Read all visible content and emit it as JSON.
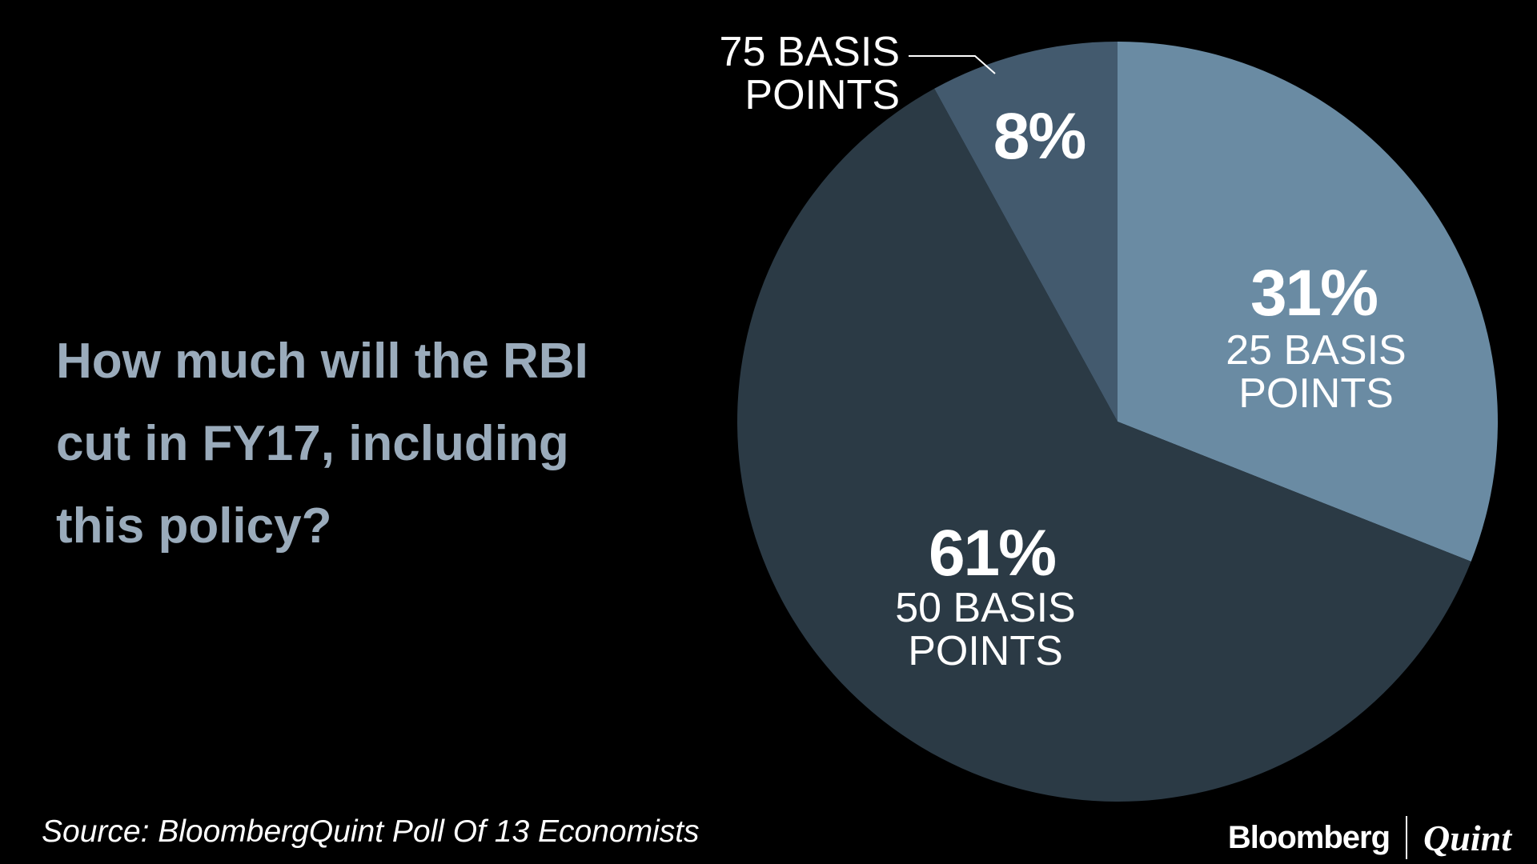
{
  "chart_data": {
    "type": "pie",
    "title": "How much will the RBI cut in FY17, including this policy?",
    "categories": [
      "25 BASIS POINTS",
      "50 BASIS POINTS",
      "75 BASIS POINTS"
    ],
    "values": [
      31,
      61,
      8
    ],
    "value_labels": [
      "31%",
      "61%",
      "8%"
    ],
    "colors": [
      "#6a8ba3",
      "#2b3a45",
      "#435a6e"
    ],
    "source": "Source: BloombergQuint Poll Of 13 Economists",
    "logo": {
      "left": "Bloomberg",
      "right": "Quint"
    }
  }
}
